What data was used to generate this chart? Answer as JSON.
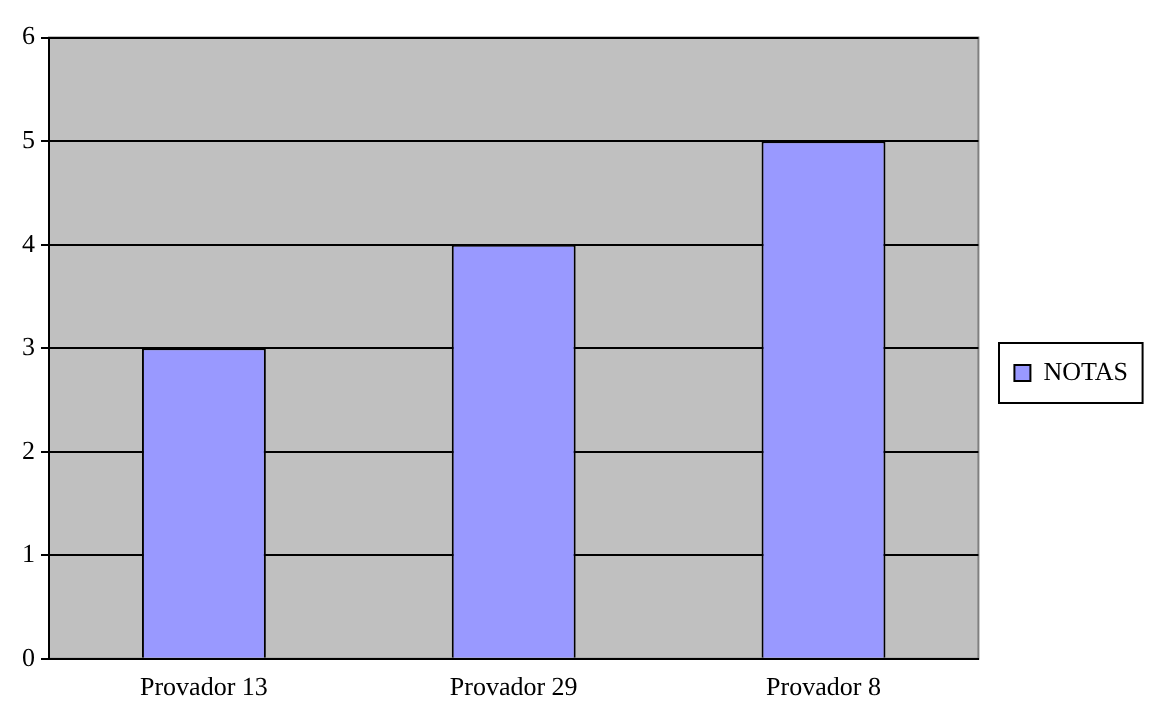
{
  "chart_data": {
    "type": "bar",
    "categories": [
      "Provador 13",
      "Provador 29",
      "Provador 8"
    ],
    "series": [
      {
        "name": "NOTAS",
        "color": "#9999ff",
        "values": [
          3,
          4,
          5
        ]
      }
    ],
    "ylim": [
      0,
      6
    ],
    "yticks": [
      0,
      1,
      2,
      3,
      4,
      5,
      6
    ],
    "grid": "y",
    "legend": "right"
  }
}
